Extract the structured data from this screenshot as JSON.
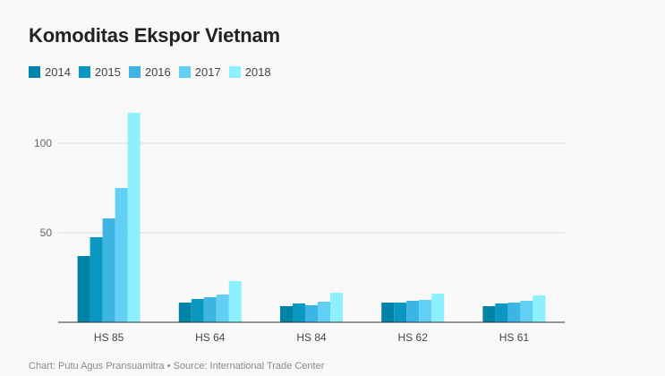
{
  "chart_data": {
    "type": "bar",
    "title": "Komoditas Ekspor Vietnam",
    "xlabel": "",
    "ylabel": "",
    "ylim": [
      0,
      120
    ],
    "yticks": [
      50,
      100
    ],
    "grid": true,
    "legend_position": "top-left",
    "categories": [
      "HS 85",
      "HS 64",
      "HS 84",
      "HS 62",
      "HS 61"
    ],
    "series": [
      {
        "name": "2014",
        "color": "#0083a8",
        "values": [
          37,
          11,
          9,
          11,
          9
        ]
      },
      {
        "name": "2015",
        "color": "#0a98c2",
        "values": [
          47.5,
          13,
          10.5,
          11,
          10.5
        ]
      },
      {
        "name": "2016",
        "color": "#3db5e2",
        "values": [
          58,
          14,
          9.5,
          12,
          11
        ]
      },
      {
        "name": "2017",
        "color": "#62cff5",
        "values": [
          75,
          15.5,
          11.5,
          12.5,
          12
        ]
      },
      {
        "name": "2018",
        "color": "#8df0fe",
        "values": [
          117,
          23,
          16.5,
          16,
          15
        ]
      }
    ]
  },
  "footer": {
    "text": "Chart: Putu Agus Pransuamitra • Source: International Trade Center"
  }
}
